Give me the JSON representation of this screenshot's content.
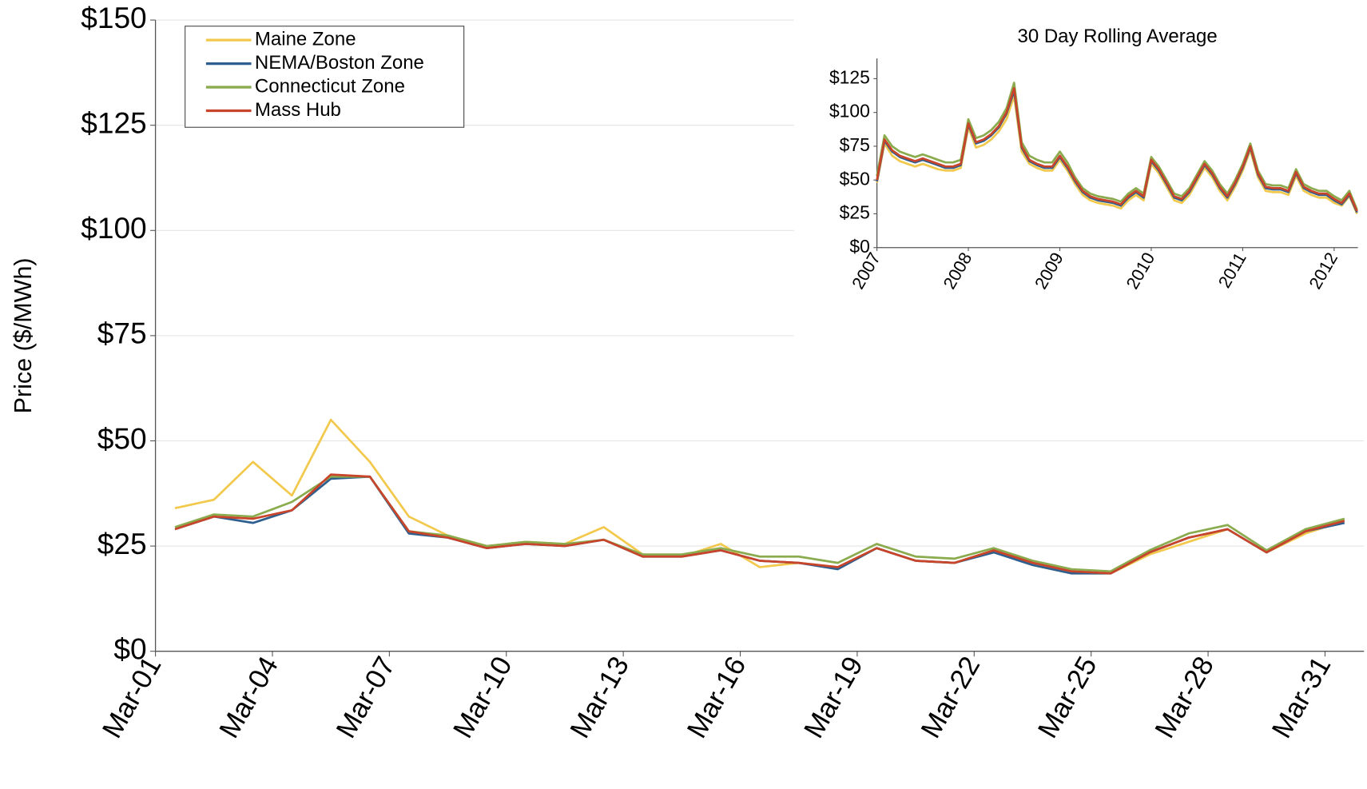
{
  "chart_data": [
    {
      "type": "line",
      "y_label": "Price ($/MWh)",
      "categories": [
        "Mar-01",
        null,
        null,
        "Mar-04",
        null,
        null,
        "Mar-07",
        null,
        null,
        "Mar-10",
        null,
        null,
        "Mar-13",
        null,
        null,
        "Mar-16",
        null,
        null,
        "Mar-19",
        null,
        null,
        "Mar-22",
        null,
        null,
        "Mar-25",
        null,
        null,
        "Mar-28",
        null,
        null,
        "Mar-31"
      ],
      "series": [
        {
          "name": "Maine Zone",
          "color": "#f2c94c",
          "values": [
            34,
            36,
            45,
            37,
            55,
            45,
            32,
            27.5,
            25,
            26,
            25.5,
            29.5,
            23,
            22.5,
            25.5,
            20,
            21,
            20,
            24.5,
            21.5,
            21,
            24,
            20.5,
            18.5,
            18.5,
            23,
            26,
            29,
            23.5,
            28,
            31
          ]
        },
        {
          "name": "NEMA/Boston Zone",
          "color": "#2f5f8f",
          "values": [
            29,
            32,
            30.5,
            33.5,
            41,
            41.5,
            28,
            27,
            24.5,
            25.5,
            25,
            26.5,
            22.5,
            22.5,
            24,
            21.5,
            21,
            19.5,
            24.5,
            21.5,
            21,
            23.5,
            20.5,
            18.5,
            18.5,
            23.5,
            27,
            29,
            23.5,
            28.5,
            30.5
          ]
        },
        {
          "name": "Connecticut Zone",
          "color": "#8aab4e",
          "values": [
            29.5,
            32.5,
            32,
            35.5,
            41.5,
            41.5,
            28.5,
            27.5,
            25,
            26,
            25.5,
            26.5,
            23,
            23,
            24.5,
            22.5,
            22.5,
            21,
            25.5,
            22.5,
            22,
            24.5,
            21.5,
            19.5,
            19,
            24,
            28,
            30,
            24,
            29,
            31.5
          ]
        },
        {
          "name": "Mass Hub",
          "color": "#c8442a",
          "values": [
            29,
            32,
            31.5,
            33.5,
            42,
            41.5,
            28.5,
            27,
            24.5,
            25.5,
            25,
            26.5,
            22.5,
            22.5,
            24,
            21.5,
            21,
            20,
            24.5,
            21.5,
            21,
            24,
            21,
            19,
            18.5,
            23.5,
            27,
            29,
            23.5,
            28.5,
            31
          ]
        }
      ],
      "ylim": [
        0,
        150
      ],
      "yticks": [
        {
          "value": 0,
          "label": "$0"
        },
        {
          "value": 25,
          "label": "$25"
        },
        {
          "value": 50,
          "label": "$50"
        },
        {
          "value": 75,
          "label": "$75"
        },
        {
          "value": 100,
          "label": "$100"
        },
        {
          "value": 125,
          "label": "$125"
        },
        {
          "value": 150,
          "label": "$150"
        }
      ],
      "grid": true,
      "legend": "upper left"
    },
    {
      "type": "line",
      "title": "30 Day Rolling Average",
      "x": [
        2007,
        2007.083,
        2007.167,
        2007.25,
        2007.333,
        2007.417,
        2007.5,
        2007.583,
        2007.667,
        2007.75,
        2007.833,
        2007.917,
        2008,
        2008.083,
        2008.167,
        2008.25,
        2008.333,
        2008.417,
        2008.5,
        2008.583,
        2008.667,
        2008.75,
        2008.833,
        2008.917,
        2009,
        2009.083,
        2009.167,
        2009.25,
        2009.333,
        2009.417,
        2009.5,
        2009.583,
        2009.667,
        2009.75,
        2009.833,
        2009.917,
        2010,
        2010.083,
        2010.167,
        2010.25,
        2010.333,
        2010.417,
        2010.5,
        2010.583,
        2010.667,
        2010.75,
        2010.833,
        2010.917,
        2011,
        2011.083,
        2011.167,
        2011.25,
        2011.333,
        2011.417,
        2011.5,
        2011.583,
        2011.667,
        2011.75,
        2011.833,
        2011.917,
        2012,
        2012.083,
        2012.167,
        2012.25
      ],
      "series": [
        {
          "color": "#f2c94c",
          "values": [
            48,
            77,
            68,
            64,
            62,
            60,
            62,
            60,
            58,
            57,
            57,
            59,
            89,
            74,
            76,
            80,
            86,
            95,
            112,
            71,
            62,
            59,
            57,
            57,
            65,
            57,
            47,
            39,
            35,
            33,
            32,
            31,
            29,
            35,
            39,
            35,
            62,
            55,
            45,
            35,
            33,
            39,
            49,
            59,
            52,
            42,
            35,
            45,
            57,
            72,
            52,
            42,
            41,
            41,
            39,
            53,
            42,
            39,
            37,
            37,
            33,
            31,
            38,
            25
          ]
        },
        {
          "color": "#2f5f8f",
          "values": [
            49,
            79,
            71,
            67,
            65,
            63,
            65,
            63,
            61,
            59,
            59,
            61,
            91,
            77,
            79,
            83,
            89,
            99,
            116,
            74,
            64,
            61,
            59,
            59,
            67,
            59,
            49,
            41,
            37,
            35,
            34,
            33,
            31,
            37,
            41,
            37,
            64,
            57,
            47,
            37,
            35,
            41,
            51,
            61,
            54,
            44,
            37,
            47,
            59,
            74,
            54,
            44,
            43,
            43,
            41,
            55,
            44,
            41,
            39,
            39,
            35,
            32,
            39,
            26
          ]
        },
        {
          "color": "#8aab4e",
          "values": [
            53,
            83,
            75,
            71,
            69,
            67,
            69,
            67,
            65,
            63,
            63,
            65,
            95,
            81,
            83,
            87,
            93,
            103,
            122,
            78,
            68,
            65,
            63,
            63,
            71,
            63,
            52,
            44,
            40,
            38,
            37,
            36,
            34,
            40,
            44,
            40,
            67,
            60,
            50,
            40,
            38,
            44,
            54,
            64,
            57,
            47,
            40,
            50,
            62,
            77,
            57,
            47,
            46,
            46,
            44,
            58,
            47,
            44,
            42,
            42,
            38,
            35,
            42,
            28
          ]
        },
        {
          "color": "#c8442a",
          "values": [
            50,
            80,
            72,
            68,
            66,
            64,
            66,
            64,
            62,
            60,
            60,
            62,
            92,
            78,
            80,
            84,
            90,
            100,
            118,
            75,
            65,
            62,
            60,
            60,
            68,
            60,
            50,
            42,
            38,
            36,
            35,
            34,
            32,
            38,
            42,
            38,
            65,
            58,
            48,
            38,
            36,
            42,
            52,
            62,
            55,
            45,
            38,
            48,
            60,
            75,
            55,
            45,
            44,
            44,
            42,
            56,
            45,
            42,
            40,
            40,
            36,
            33,
            40,
            27
          ]
        }
      ],
      "xlim": [
        2007,
        2012.26
      ],
      "xticks": [
        2007,
        2008,
        2009,
        2010,
        2011,
        2012
      ],
      "ylim": [
        0,
        140
      ],
      "yticks": [
        {
          "value": 0,
          "label": "$0"
        },
        {
          "value": 25,
          "label": "$25"
        },
        {
          "value": 50,
          "label": "$50"
        },
        {
          "value": 75,
          "label": "$75"
        },
        {
          "value": 100,
          "label": "$100"
        },
        {
          "value": 125,
          "label": "$125"
        }
      ],
      "grid": false
    }
  ]
}
